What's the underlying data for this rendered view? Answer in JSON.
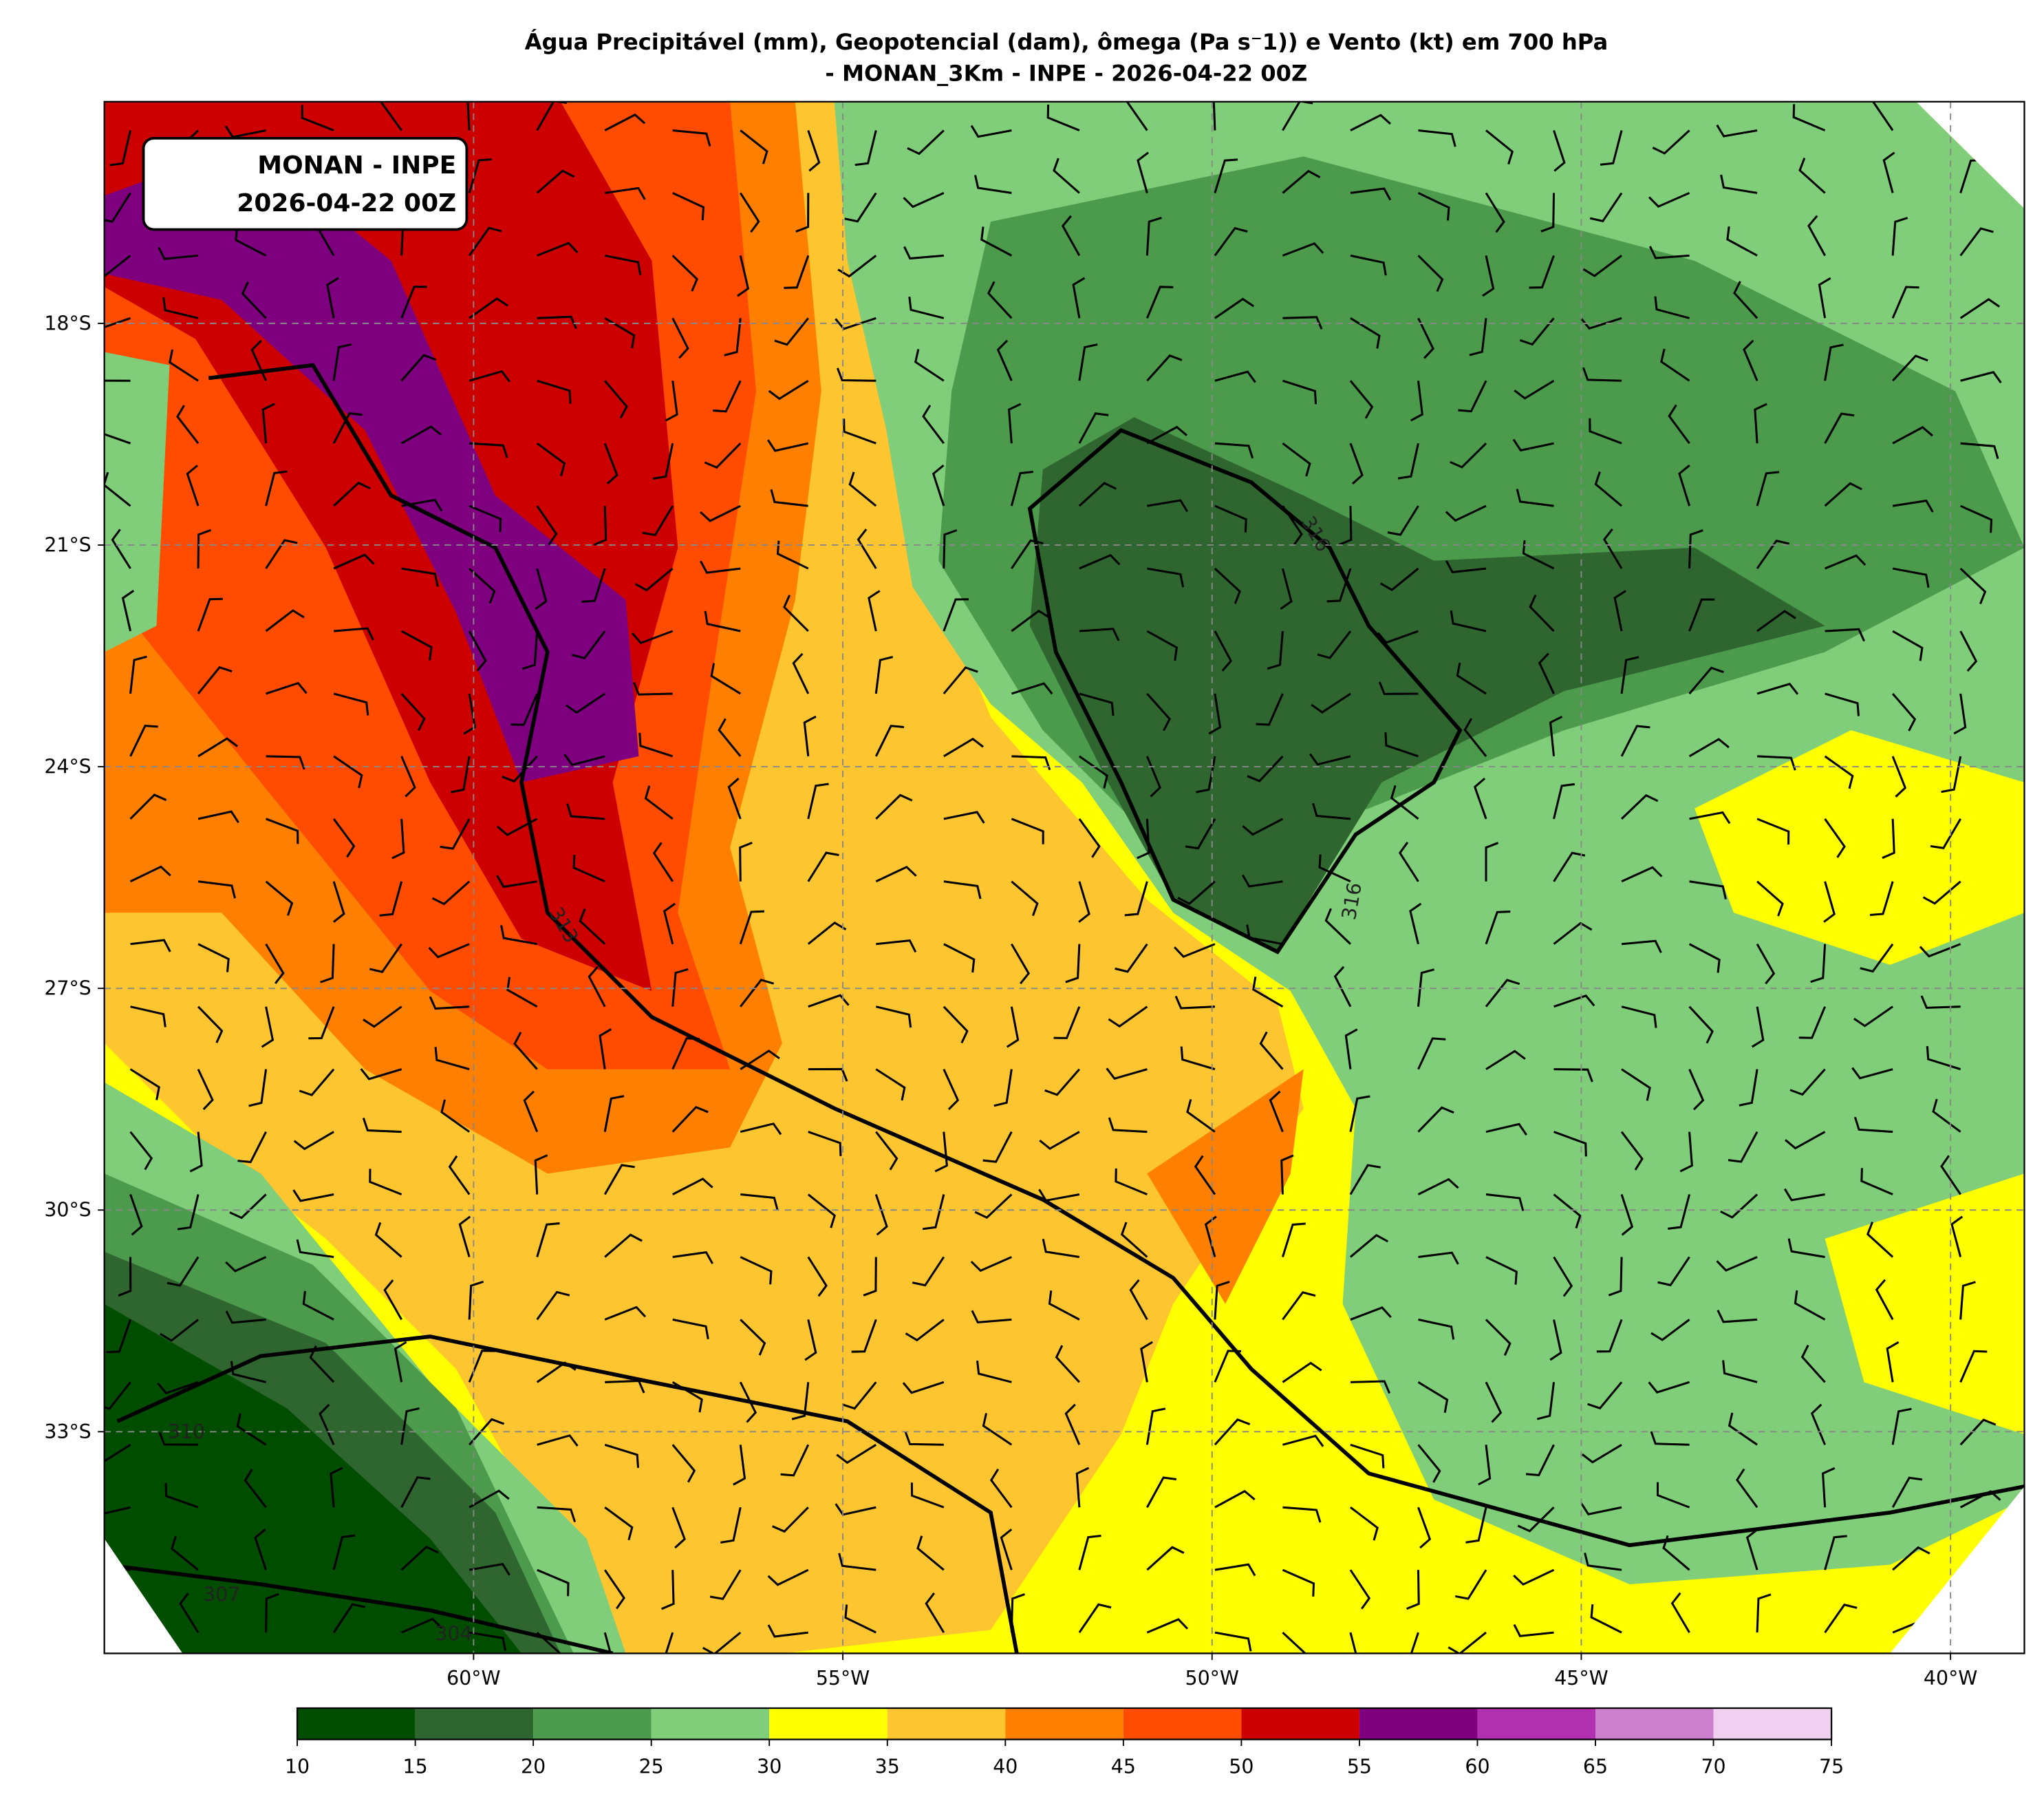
{
  "map": {
    "title": [
      "Água Precipitável (mm), Geopotencial (dam), ômega (Pa s⁻1)) e Vento (kt) em 700 hPa",
      "- MONAN_3Km - INPE - 2026-04-22 00Z"
    ],
    "info_box": [
      "MONAN - INPE",
      "2026-04-22 00Z"
    ],
    "xlim": [
      -65,
      -39
    ],
    "ylim": [
      -36,
      -15
    ],
    "xticks": [
      {
        "value": -60,
        "label": "60°W"
      },
      {
        "value": -55,
        "label": "55°W"
      },
      {
        "value": -50,
        "label": "50°W"
      },
      {
        "value": -45,
        "label": "45°W"
      },
      {
        "value": -40,
        "label": "40°W"
      }
    ],
    "yticks": [
      {
        "value": -18,
        "label": "18°S"
      },
      {
        "value": -21,
        "label": "21°S"
      },
      {
        "value": -24,
        "label": "24°S"
      },
      {
        "value": -27,
        "label": "27°S"
      },
      {
        "value": -30,
        "label": "30°S"
      },
      {
        "value": -33,
        "label": "33°S"
      }
    ],
    "grid": true,
    "contour_labels": [
      "316",
      "313",
      "316",
      "310",
      "307",
      "304"
    ],
    "colorbar": {
      "levels": [
        10,
        15,
        20,
        25,
        30,
        35,
        40,
        45,
        50,
        55,
        60,
        65,
        70,
        75
      ],
      "colors": [
        "#004d00",
        "#2f6630",
        "#4c9a4c",
        "#80cd7a",
        "#ffff00",
        "#fdc52f",
        "#ff7f00",
        "#ff4c00",
        "#cc0000",
        "#7f007f",
        "#b030b0",
        "#cc7fcc",
        "#f0d0f0"
      ]
    }
  }
}
